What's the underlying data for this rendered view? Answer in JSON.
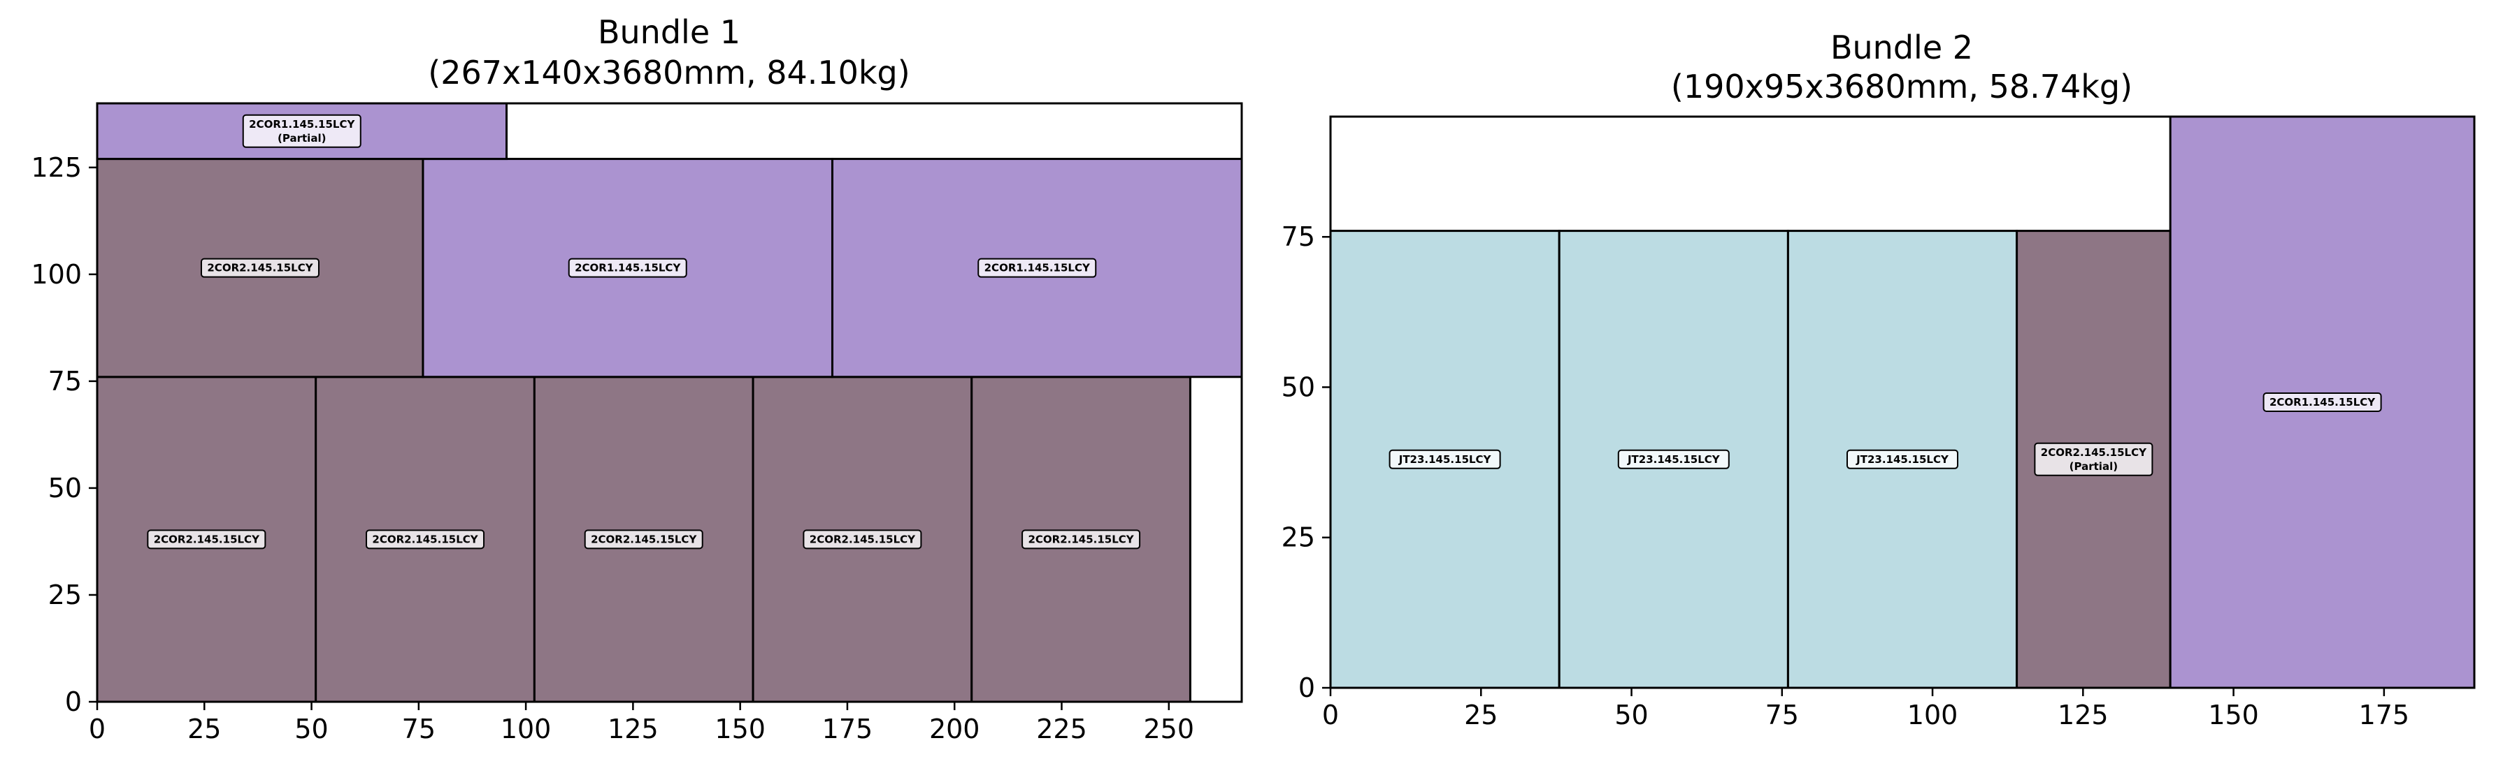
{
  "chart_data": [
    {
      "type": "packing-layout",
      "title": "Bundle 1",
      "subtitle": "(267x140x3680mm, 84.10kg)",
      "xlim": [
        0,
        267
      ],
      "ylim": [
        0,
        140
      ],
      "xticks": [
        0,
        25,
        50,
        75,
        100,
        125,
        150,
        175,
        200,
        225,
        250
      ],
      "yticks": [
        0,
        25,
        50,
        75,
        100,
        125
      ],
      "grid": false,
      "pieces": [
        {
          "label": "2COR2.145.15LCY",
          "x": 0,
          "y": 0,
          "w": 51,
          "h": 76,
          "color": "#8e7685"
        },
        {
          "label": "2COR2.145.15LCY",
          "x": 51,
          "y": 0,
          "w": 51,
          "h": 76,
          "color": "#8e7685"
        },
        {
          "label": "2COR2.145.15LCY",
          "x": 102,
          "y": 0,
          "w": 51,
          "h": 76,
          "color": "#8e7685"
        },
        {
          "label": "2COR2.145.15LCY",
          "x": 153,
          "y": 0,
          "w": 51,
          "h": 76,
          "color": "#8e7685"
        },
        {
          "label": "2COR2.145.15LCY",
          "x": 204,
          "y": 0,
          "w": 51,
          "h": 76,
          "color": "#8e7685"
        },
        {
          "label": "2COR2.145.15LCY",
          "x": 0,
          "y": 76,
          "w": 76,
          "h": 51,
          "color": "#8e7685"
        },
        {
          "label": "2COR1.145.15LCY",
          "x": 76,
          "y": 76,
          "w": 95.5,
          "h": 51,
          "color": "#ab93d0"
        },
        {
          "label": "2COR1.145.15LCY",
          "x": 171.5,
          "y": 76,
          "w": 95.5,
          "h": 51,
          "color": "#ab93d0"
        },
        {
          "label": "2COR1.145.15LCY",
          "note": "(Partial)",
          "x": 0,
          "y": 127,
          "w": 95.5,
          "h": 13,
          "color": "#ab93d0"
        }
      ]
    },
    {
      "type": "packing-layout",
      "title": "Bundle 2",
      "subtitle": "(190x95x3680mm, 58.74kg)",
      "xlim": [
        0,
        190
      ],
      "ylim": [
        0,
        95
      ],
      "xticks": [
        0,
        25,
        50,
        75,
        100,
        125,
        150,
        175
      ],
      "yticks": [
        0,
        25,
        50,
        75
      ],
      "grid": false,
      "pieces": [
        {
          "label": "JT23.145.15LCY",
          "x": 0,
          "y": 0,
          "w": 38,
          "h": 76,
          "color": "#bcdce3"
        },
        {
          "label": "JT23.145.15LCY",
          "x": 38,
          "y": 0,
          "w": 38,
          "h": 76,
          "color": "#bcdce3"
        },
        {
          "label": "JT23.145.15LCY",
          "x": 76,
          "y": 0,
          "w": 38,
          "h": 76,
          "color": "#bcdce3"
        },
        {
          "label": "2COR2.145.15LCY",
          "note": "(Partial)",
          "x": 114,
          "y": 0,
          "w": 25.5,
          "h": 76,
          "color": "#8e7685"
        },
        {
          "label": "2COR1.145.15LCY",
          "x": 139.5,
          "y": 0,
          "w": 50.5,
          "h": 95,
          "color": "#ab93d0"
        }
      ]
    }
  ]
}
